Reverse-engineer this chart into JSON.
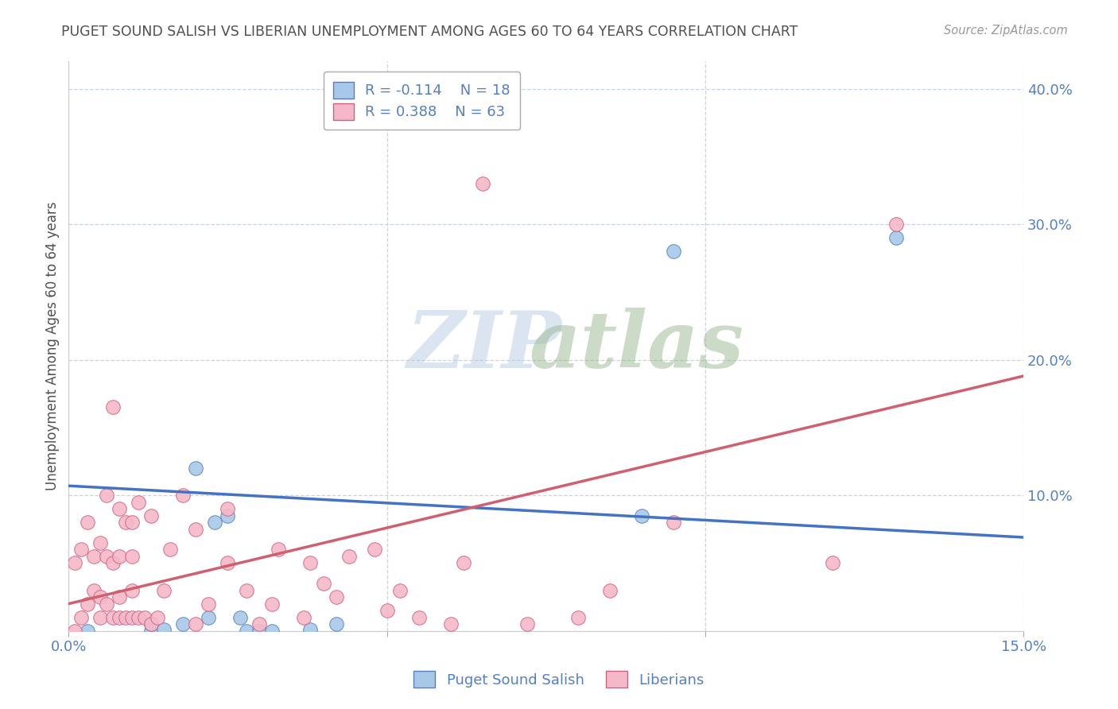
{
  "title": "PUGET SOUND SALISH VS LIBERIAN UNEMPLOYMENT AMONG AGES 60 TO 64 YEARS CORRELATION CHART",
  "source": "Source: ZipAtlas.com",
  "ylabel": "Unemployment Among Ages 60 to 64 years",
  "xlim": [
    0.0,
    0.15
  ],
  "ylim": [
    0.0,
    0.42
  ],
  "xticks": [
    0.0,
    0.05,
    0.1,
    0.15
  ],
  "xticklabels": [
    "0.0%",
    "",
    "",
    "15.0%"
  ],
  "yticks": [
    0.0,
    0.1,
    0.2,
    0.3,
    0.4
  ],
  "yticklabels": [
    "",
    "10.0%",
    "20.0%",
    "30.0%",
    "40.0%"
  ],
  "blue_R": -0.114,
  "blue_N": 18,
  "pink_R": 0.388,
  "pink_N": 63,
  "blue_label": "Puget Sound Salish",
  "pink_label": "Liberians",
  "blue_color": "#a8c8e8",
  "pink_color": "#f5b8c8",
  "blue_edge_color": "#5580c0",
  "pink_edge_color": "#d06080",
  "blue_line_color": "#4472c4",
  "pink_line_color": "#d06070",
  "background_color": "#ffffff",
  "grid_color": "#c8d4e4",
  "title_color": "#505050",
  "axis_color": "#5580c0",
  "blue_x": [
    0.013,
    0.013,
    0.015,
    0.018,
    0.02,
    0.022,
    0.023,
    0.025,
    0.027,
    0.028,
    0.03,
    0.032,
    0.038,
    0.042,
    0.09,
    0.095,
    0.13,
    0.003
  ],
  "blue_y": [
    0.0,
    0.005,
    0.001,
    0.005,
    0.12,
    0.01,
    0.08,
    0.085,
    0.01,
    0.0,
    0.0,
    0.0,
    0.001,
    0.005,
    0.085,
    0.28,
    0.29,
    0.0
  ],
  "pink_x": [
    0.001,
    0.001,
    0.002,
    0.002,
    0.003,
    0.003,
    0.004,
    0.004,
    0.005,
    0.005,
    0.005,
    0.006,
    0.006,
    0.006,
    0.007,
    0.007,
    0.007,
    0.008,
    0.008,
    0.008,
    0.008,
    0.009,
    0.009,
    0.01,
    0.01,
    0.01,
    0.01,
    0.011,
    0.011,
    0.012,
    0.013,
    0.013,
    0.014,
    0.015,
    0.016,
    0.018,
    0.02,
    0.02,
    0.022,
    0.025,
    0.025,
    0.028,
    0.03,
    0.032,
    0.033,
    0.037,
    0.038,
    0.04,
    0.042,
    0.044,
    0.048,
    0.05,
    0.052,
    0.055,
    0.06,
    0.062,
    0.065,
    0.072,
    0.08,
    0.085,
    0.095,
    0.12,
    0.13
  ],
  "pink_y": [
    0.0,
    0.05,
    0.01,
    0.06,
    0.02,
    0.08,
    0.03,
    0.055,
    0.01,
    0.025,
    0.065,
    0.02,
    0.055,
    0.1,
    0.01,
    0.05,
    0.165,
    0.01,
    0.025,
    0.055,
    0.09,
    0.01,
    0.08,
    0.01,
    0.03,
    0.055,
    0.08,
    0.01,
    0.095,
    0.01,
    0.005,
    0.085,
    0.01,
    0.03,
    0.06,
    0.1,
    0.005,
    0.075,
    0.02,
    0.05,
    0.09,
    0.03,
    0.005,
    0.02,
    0.06,
    0.01,
    0.05,
    0.035,
    0.025,
    0.055,
    0.06,
    0.015,
    0.03,
    0.01,
    0.005,
    0.05,
    0.33,
    0.005,
    0.01,
    0.03,
    0.08,
    0.05,
    0.3
  ],
  "blue_trendline_x": [
    0.0,
    0.15
  ],
  "blue_trendline_y": [
    0.107,
    0.069
  ],
  "pink_trendline_x": [
    0.0,
    0.15
  ],
  "pink_trendline_y": [
    0.02,
    0.188
  ]
}
